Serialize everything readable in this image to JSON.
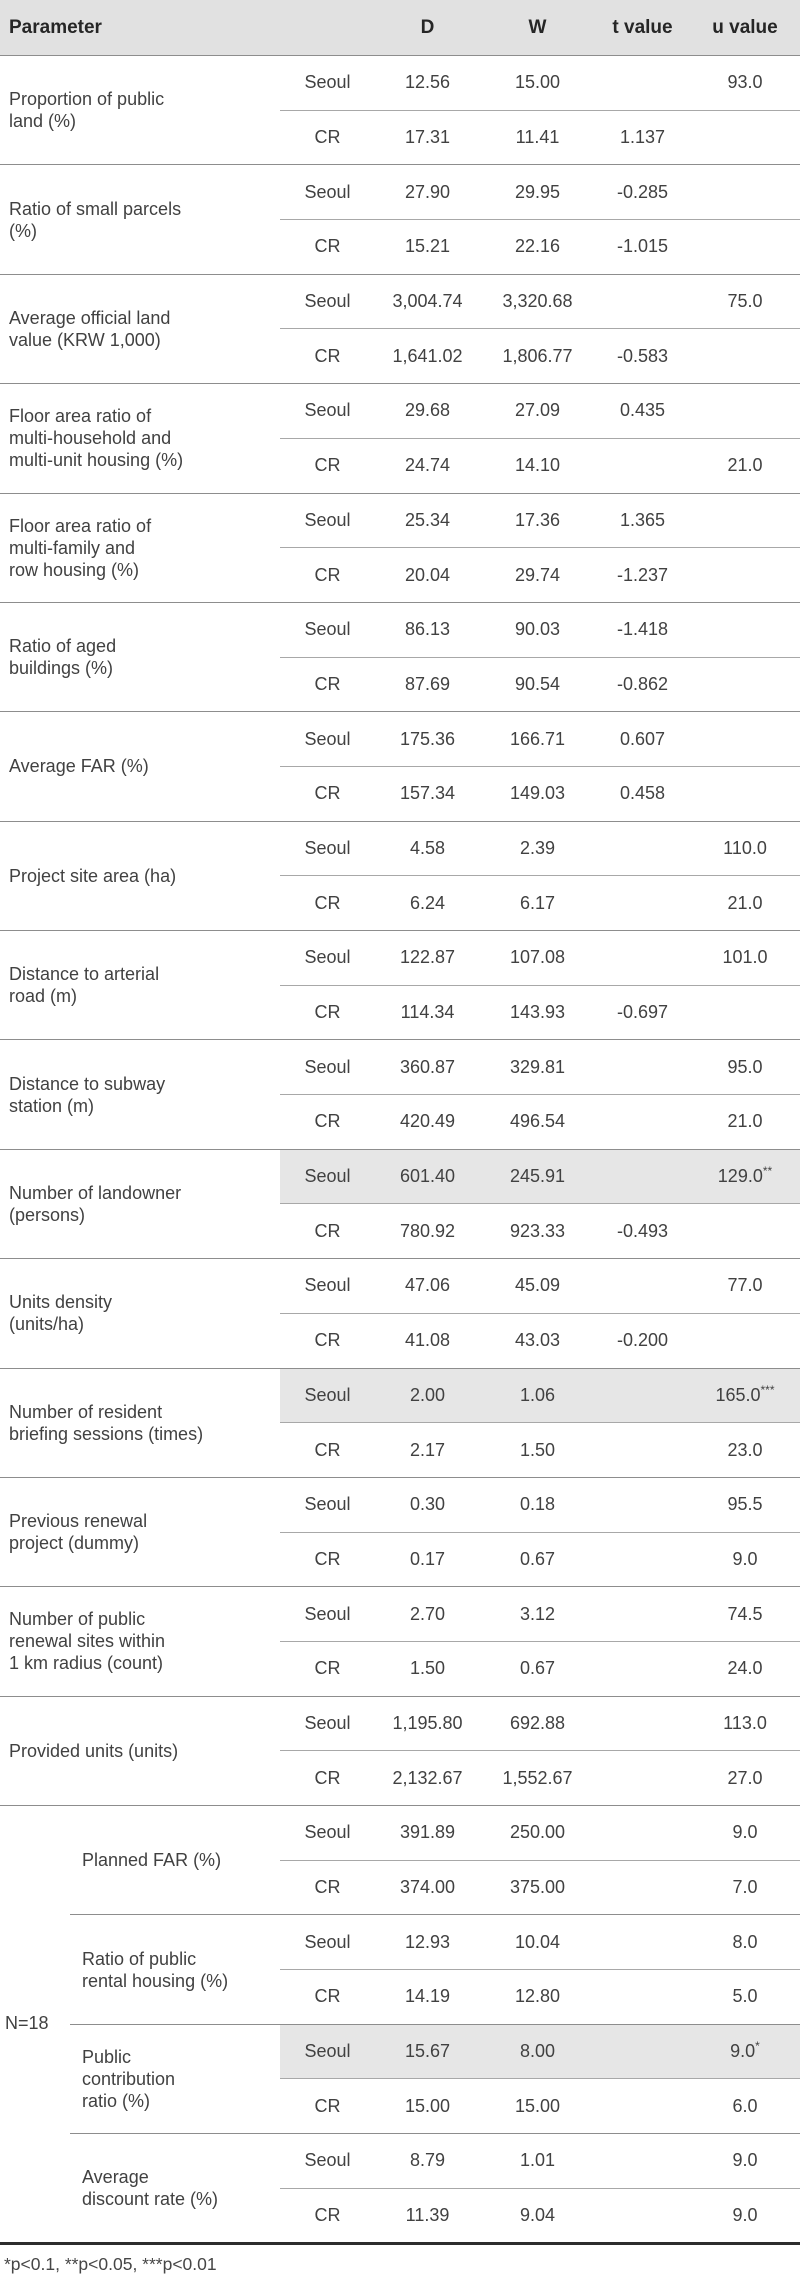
{
  "table": {
    "header": {
      "parameter": "Parameter",
      "d": "D",
      "w": "W",
      "t": "t value",
      "u": "u value"
    },
    "footnote": "*p<0.1, **p<0.05, ***p<0.01",
    "groups": [
      {
        "parameter": "Proportion of public\nland (%)",
        "rows": [
          {
            "region": "Seoul",
            "d": "12.56",
            "w": "15.00",
            "t": "",
            "u": "93.0",
            "u_sup": "",
            "highlight": false
          },
          {
            "region": "CR",
            "d": "17.31",
            "w": "11.41",
            "t": "1.137",
            "u": "",
            "u_sup": "",
            "highlight": false
          }
        ]
      },
      {
        "parameter": "Ratio of small parcels\n(%)",
        "rows": [
          {
            "region": "Seoul",
            "d": "27.90",
            "w": "29.95",
            "t": "-0.285",
            "u": "",
            "u_sup": "",
            "highlight": false
          },
          {
            "region": "CR",
            "d": "15.21",
            "w": "22.16",
            "t": "-1.015",
            "u": "",
            "u_sup": "",
            "highlight": false
          }
        ]
      },
      {
        "parameter": "Average official land\nvalue (KRW 1,000)",
        "rows": [
          {
            "region": "Seoul",
            "d": "3,004.74",
            "w": "3,320.68",
            "t": "",
            "u": "75.0",
            "u_sup": "",
            "highlight": false
          },
          {
            "region": "CR",
            "d": "1,641.02",
            "w": "1,806.77",
            "t": "-0.583",
            "u": "",
            "u_sup": "",
            "highlight": false
          }
        ]
      },
      {
        "parameter": "Floor area ratio of\nmulti-household and\nmulti-unit housing (%)",
        "rows": [
          {
            "region": "Seoul",
            "d": "29.68",
            "w": "27.09",
            "t": "0.435",
            "u": "",
            "u_sup": "",
            "highlight": false
          },
          {
            "region": "CR",
            "d": "24.74",
            "w": "14.10",
            "t": "",
            "u": "21.0",
            "u_sup": "",
            "highlight": false
          }
        ]
      },
      {
        "parameter": "Floor area ratio of\nmulti-family and\nrow housing (%)",
        "rows": [
          {
            "region": "Seoul",
            "d": "25.34",
            "w": "17.36",
            "t": "1.365",
            "u": "",
            "u_sup": "",
            "highlight": false
          },
          {
            "region": "CR",
            "d": "20.04",
            "w": "29.74",
            "t": "-1.237",
            "u": "",
            "u_sup": "",
            "highlight": false
          }
        ]
      },
      {
        "parameter": "Ratio of aged\nbuildings (%)",
        "rows": [
          {
            "region": "Seoul",
            "d": "86.13",
            "w": "90.03",
            "t": "-1.418",
            "u": "",
            "u_sup": "",
            "highlight": false
          },
          {
            "region": "CR",
            "d": "87.69",
            "w": "90.54",
            "t": "-0.862",
            "u": "",
            "u_sup": "",
            "highlight": false
          }
        ]
      },
      {
        "parameter": "Average FAR (%)",
        "rows": [
          {
            "region": "Seoul",
            "d": "175.36",
            "w": "166.71",
            "t": "0.607",
            "u": "",
            "u_sup": "",
            "highlight": false
          },
          {
            "region": "CR",
            "d": "157.34",
            "w": "149.03",
            "t": "0.458",
            "u": "",
            "u_sup": "",
            "highlight": false
          }
        ]
      },
      {
        "parameter": "Project site area (ha)",
        "rows": [
          {
            "region": "Seoul",
            "d": "4.58",
            "w": "2.39",
            "t": "",
            "u": "110.0",
            "u_sup": "",
            "highlight": false
          },
          {
            "region": "CR",
            "d": "6.24",
            "w": "6.17",
            "t": "",
            "u": "21.0",
            "u_sup": "",
            "highlight": false
          }
        ]
      },
      {
        "parameter": "Distance to arterial\nroad (m)",
        "rows": [
          {
            "region": "Seoul",
            "d": "122.87",
            "w": "107.08",
            "t": "",
            "u": "101.0",
            "u_sup": "",
            "highlight": false
          },
          {
            "region": "CR",
            "d": "114.34",
            "w": "143.93",
            "t": "-0.697",
            "u": "",
            "u_sup": "",
            "highlight": false
          }
        ]
      },
      {
        "parameter": "Distance to subway\nstation (m)",
        "rows": [
          {
            "region": "Seoul",
            "d": "360.87",
            "w": "329.81",
            "t": "",
            "u": "95.0",
            "u_sup": "",
            "highlight": false
          },
          {
            "region": "CR",
            "d": "420.49",
            "w": "496.54",
            "t": "",
            "u": "21.0",
            "u_sup": "",
            "highlight": false
          }
        ]
      },
      {
        "parameter": "Number of landowner\n(persons)",
        "rows": [
          {
            "region": "Seoul",
            "d": "601.40",
            "w": "245.91",
            "t": "",
            "u": "129.0",
            "u_sup": "**",
            "highlight": true
          },
          {
            "region": "CR",
            "d": "780.92",
            "w": "923.33",
            "t": "-0.493",
            "u": "",
            "u_sup": "",
            "highlight": false
          }
        ]
      },
      {
        "parameter": "Units density\n(units/ha)",
        "rows": [
          {
            "region": "Seoul",
            "d": "47.06",
            "w": "45.09",
            "t": "",
            "u": "77.0",
            "u_sup": "",
            "highlight": false
          },
          {
            "region": "CR",
            "d": "41.08",
            "w": "43.03",
            "t": "-0.200",
            "u": "",
            "u_sup": "",
            "highlight": false
          }
        ]
      },
      {
        "parameter": "Number of resident\nbriefing sessions (times)",
        "rows": [
          {
            "region": "Seoul",
            "d": "2.00",
            "w": "1.06",
            "t": "",
            "u": "165.0",
            "u_sup": "***",
            "highlight": true
          },
          {
            "region": "CR",
            "d": "2.17",
            "w": "1.50",
            "t": "",
            "u": "23.0",
            "u_sup": "",
            "highlight": false
          }
        ]
      },
      {
        "parameter": "Previous renewal\nproject (dummy)",
        "rows": [
          {
            "region": "Seoul",
            "d": "0.30",
            "w": "0.18",
            "t": "",
            "u": "95.5",
            "u_sup": "",
            "highlight": false
          },
          {
            "region": "CR",
            "d": "0.17",
            "w": "0.67",
            "t": "",
            "u": "9.0",
            "u_sup": "",
            "highlight": false
          }
        ]
      },
      {
        "parameter": "Number of public\nrenewal sites within\n1 km radius (count)",
        "rows": [
          {
            "region": "Seoul",
            "d": "2.70",
            "w": "3.12",
            "t": "",
            "u": "74.5",
            "u_sup": "",
            "highlight": false
          },
          {
            "region": "CR",
            "d": "1.50",
            "w": "0.67",
            "t": "",
            "u": "24.0",
            "u_sup": "",
            "highlight": false
          }
        ]
      },
      {
        "parameter": "Provided units (units)",
        "rows": [
          {
            "region": "Seoul",
            "d": "1,195.80",
            "w": "692.88",
            "t": "",
            "u": "113.0",
            "u_sup": "",
            "highlight": false
          },
          {
            "region": "CR",
            "d": "2,132.67",
            "w": "1,552.67",
            "t": "",
            "u": "27.0",
            "u_sup": "",
            "highlight": false
          }
        ]
      }
    ],
    "section": {
      "label": "N=18",
      "groups": [
        {
          "parameter": "Planned FAR (%)",
          "rows": [
            {
              "region": "Seoul",
              "d": "391.89",
              "w": "250.00",
              "t": "",
              "u": "9.0",
              "u_sup": "",
              "highlight": false
            },
            {
              "region": "CR",
              "d": "374.00",
              "w": "375.00",
              "t": "",
              "u": "7.0",
              "u_sup": "",
              "highlight": false
            }
          ]
        },
        {
          "parameter": "Ratio of public\nrental housing (%)",
          "rows": [
            {
              "region": "Seoul",
              "d": "12.93",
              "w": "10.04",
              "t": "",
              "u": "8.0",
              "u_sup": "",
              "highlight": false
            },
            {
              "region": "CR",
              "d": "14.19",
              "w": "12.80",
              "t": "",
              "u": "5.0",
              "u_sup": "",
              "highlight": false
            }
          ]
        },
        {
          "parameter": "Public\ncontribution\nratio (%)",
          "rows": [
            {
              "region": "Seoul",
              "d": "15.67",
              "w": "8.00",
              "t": "",
              "u": "9.0",
              "u_sup": "*",
              "highlight": true
            },
            {
              "region": "CR",
              "d": "15.00",
              "w": "15.00",
              "t": "",
              "u": "6.0",
              "u_sup": "",
              "highlight": false
            }
          ]
        },
        {
          "parameter": "Average\ndiscount rate (%)",
          "rows": [
            {
              "region": "Seoul",
              "d": "8.79",
              "w": "1.01",
              "t": "",
              "u": "9.0",
              "u_sup": "",
              "highlight": false
            },
            {
              "region": "CR",
              "d": "11.39",
              "w": "9.04",
              "t": "",
              "u": "9.0",
              "u_sup": "",
              "highlight": false
            }
          ]
        }
      ]
    }
  }
}
